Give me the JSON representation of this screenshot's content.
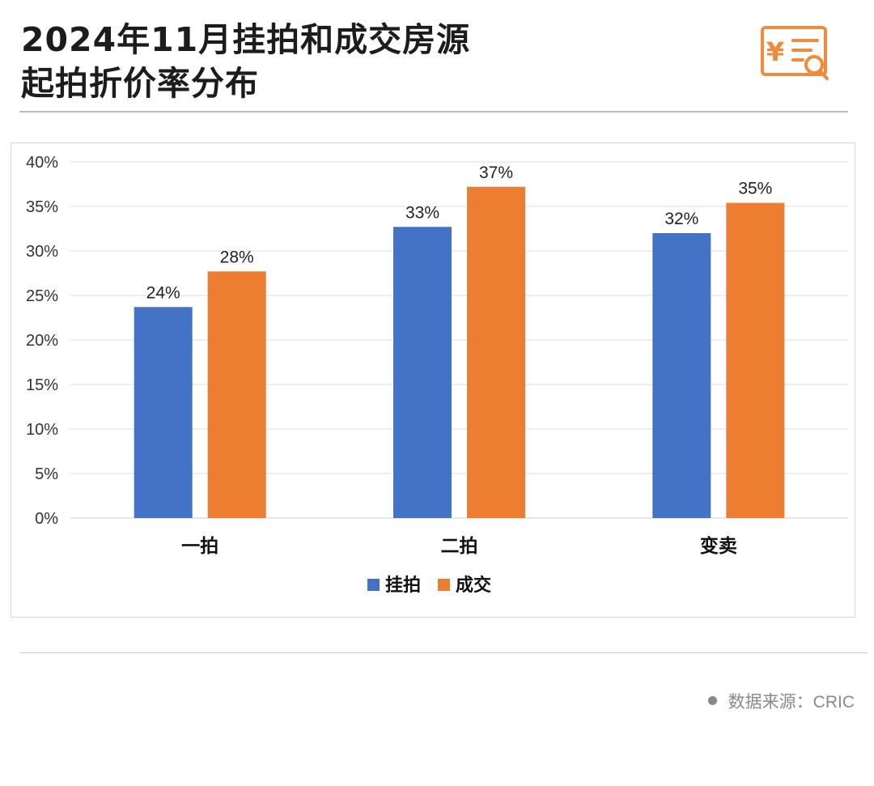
{
  "title": {
    "line1": "2024年11月挂拍和成交房源",
    "line2": "起拍折价率分布"
  },
  "icon": "receipt-yen-search-icon",
  "source": {
    "label": "数据来源：CRIC"
  },
  "colors": {
    "series1": "#4472C4",
    "series2": "#ED7D31",
    "accent": "#F08A3C"
  },
  "chart_data": {
    "type": "bar",
    "categories": [
      "一拍",
      "二拍",
      "变卖"
    ],
    "series": [
      {
        "name": "挂拍",
        "values": [
          0.237,
          0.327,
          0.32
        ],
        "labels": [
          "24%",
          "33%",
          "32%"
        ]
      },
      {
        "name": "成交",
        "values": [
          0.277,
          0.372,
          0.354
        ],
        "labels": [
          "28%",
          "37%",
          "35%"
        ]
      }
    ],
    "ylim": [
      0,
      0.4
    ],
    "yticks": [
      "0%",
      "5%",
      "10%",
      "15%",
      "20%",
      "25%",
      "30%",
      "35%",
      "40%"
    ],
    "grid": true,
    "legend": "bottom"
  }
}
